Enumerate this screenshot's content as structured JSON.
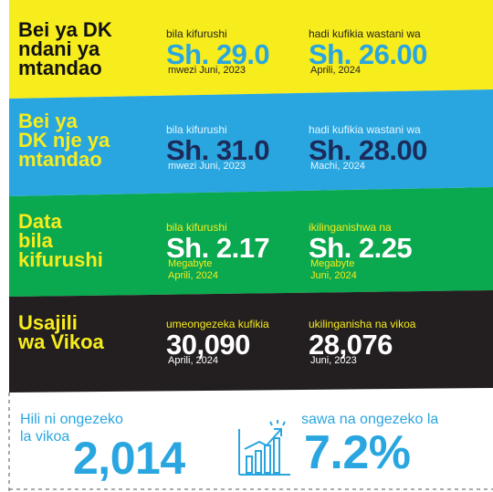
{
  "rows": [
    {
      "title": [
        "Bei ya DK",
        "ndani ya",
        "mtandao"
      ],
      "left": {
        "label": "bila kifurushi",
        "value": "Sh. 29.0",
        "notes": [
          "mwezi Juni, 2023"
        ]
      },
      "right": {
        "label": "hadi kufikia wastani wa",
        "value": "Sh. 26.00",
        "notes": [
          "Aprili,  2024"
        ]
      }
    },
    {
      "title": [
        "Bei ya",
        "DK nje ya",
        "mtandao"
      ],
      "left": {
        "label": "bila kifurushi",
        "value": "Sh. 31.0",
        "notes": [
          "mwezi Juni, 2023"
        ]
      },
      "right": {
        "label": "hadi kufikia wastani wa",
        "value": "Sh. 28.00",
        "notes": [
          "Machi, 2024"
        ]
      }
    },
    {
      "title": [
        "Data",
        "bila",
        "kifurushi"
      ],
      "left": {
        "label": "bila kifurushi",
        "value": "Sh. 2.17",
        "notes": [
          "Megabyte",
          "Aprili, 2024"
        ]
      },
      "right": {
        "label": "ikilinganishwa na",
        "value": "Sh. 2.25",
        "notes": [
          "Megabyte",
          "Juni, 2024"
        ]
      }
    },
    {
      "title": [
        "Usajili",
        "wa Vikoa"
      ],
      "left": {
        "label": "umeongezeka kufikia",
        "value": "30,090",
        "notes": [
          "Aprili, 2024"
        ]
      },
      "right": {
        "label": "ukilinganisha na vikoa",
        "value": "28,076",
        "notes": [
          "Juni, 2023"
        ]
      }
    }
  ],
  "footer": {
    "lead": [
      "Hili ni ongezeko",
      "la vikoa"
    ],
    "increase": "2,014",
    "compare": "sawa na ongezeko la",
    "percent": "7.2%"
  }
}
